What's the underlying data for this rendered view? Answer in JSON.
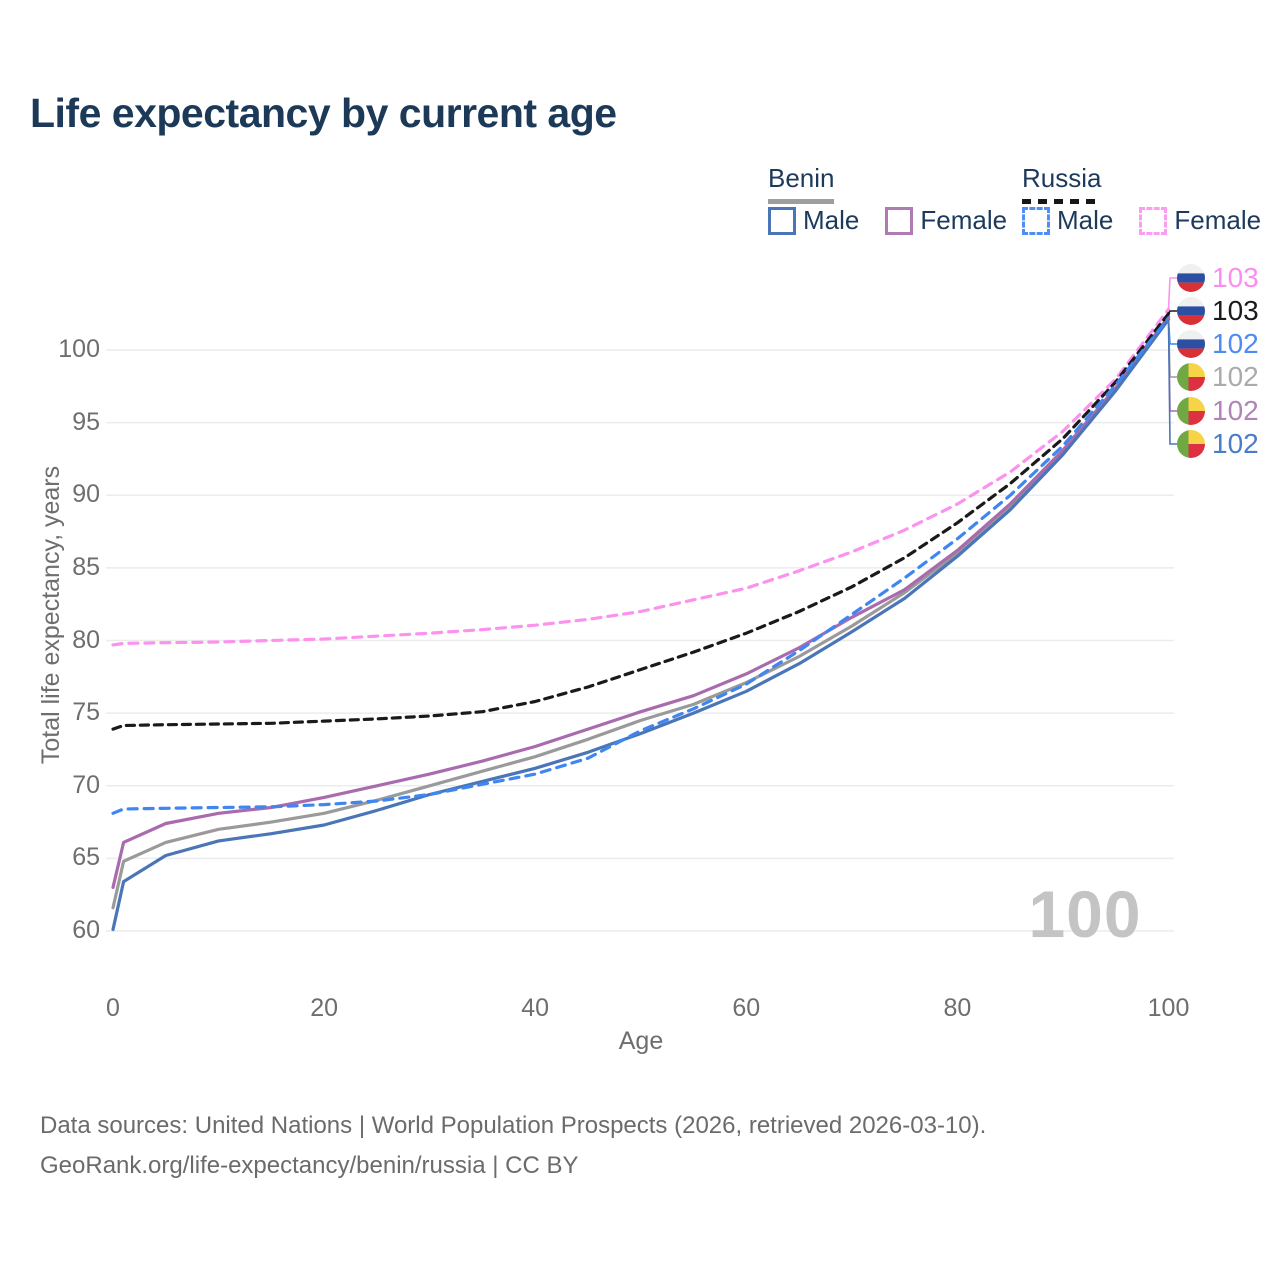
{
  "title": "Life expectancy by current age",
  "legend": {
    "benin": {
      "label": "Benin",
      "male": "Male",
      "female": "Female"
    },
    "russia": {
      "label": "Russia",
      "male": "Male",
      "female": "Female"
    }
  },
  "chart_data": {
    "type": "line",
    "xlabel": "Age",
    "ylabel": "Total life expectancy, years",
    "x_ticks": [
      0,
      20,
      40,
      60,
      80,
      100
    ],
    "y_ticks": [
      60,
      65,
      70,
      75,
      80,
      85,
      90,
      95,
      100
    ],
    "xlim": [
      0,
      100
    ],
    "ylim": [
      60,
      103.5
    ],
    "grid": true,
    "watermark": "100",
    "x": [
      0,
      1,
      5,
      10,
      15,
      20,
      25,
      30,
      35,
      40,
      45,
      50,
      55,
      60,
      65,
      70,
      75,
      80,
      85,
      90,
      95,
      100
    ],
    "series": [
      {
        "name": "Benin Total",
        "country": "Benin",
        "sex": "Total",
        "color": "#9a9a9a",
        "dash": "none",
        "values": [
          61.6,
          64.8,
          66.1,
          67.0,
          67.5,
          68.1,
          69.0,
          70.0,
          71.0,
          72.0,
          73.2,
          74.5,
          75.6,
          77.1,
          78.9,
          81.0,
          83.3,
          86.0,
          89.2,
          92.9,
          97.3,
          102.15
        ]
      },
      {
        "name": "Benin Female",
        "country": "Benin",
        "sex": "Female",
        "color": "#a96bae",
        "dash": "none",
        "values": [
          63.0,
          66.1,
          67.4,
          68.1,
          68.5,
          69.2,
          70.0,
          70.8,
          71.7,
          72.7,
          73.9,
          75.1,
          76.2,
          77.7,
          79.5,
          81.6,
          83.5,
          86.2,
          89.4,
          93.1,
          97.4,
          102.3
        ]
      },
      {
        "name": "Benin Male",
        "country": "Benin",
        "sex": "Male",
        "color": "#4a76b8",
        "dash": "none",
        "values": [
          60.1,
          63.4,
          65.2,
          66.2,
          66.7,
          67.3,
          68.3,
          69.4,
          70.3,
          71.2,
          72.3,
          73.6,
          75.0,
          76.5,
          78.4,
          80.6,
          82.9,
          85.8,
          89.0,
          92.8,
          97.2,
          102.1
        ]
      },
      {
        "name": "Russia Female",
        "country": "Russia",
        "sex": "Female",
        "color": "#fb93ee",
        "dash": "9 7",
        "values": [
          79.7,
          79.8,
          79.85,
          79.9,
          80.0,
          80.1,
          80.3,
          80.5,
          80.75,
          81.05,
          81.45,
          82.0,
          82.8,
          83.6,
          84.8,
          86.1,
          87.6,
          89.4,
          91.6,
          94.4,
          98.0,
          102.8
        ]
      },
      {
        "name": "Russia Total",
        "country": "Russia",
        "sex": "Total",
        "color": "#1a1a1a",
        "dash": "8 6",
        "values": [
          73.9,
          74.15,
          74.2,
          74.25,
          74.3,
          74.45,
          74.6,
          74.8,
          75.1,
          75.8,
          76.8,
          78.0,
          79.2,
          80.5,
          82.0,
          83.7,
          85.7,
          88.1,
          90.8,
          93.9,
          97.8,
          102.5
        ]
      },
      {
        "name": "Russia Male",
        "country": "Russia",
        "sex": "Male",
        "color": "#3f86f0",
        "dash": "9 7",
        "values": [
          68.1,
          68.4,
          68.45,
          68.5,
          68.55,
          68.7,
          68.95,
          69.4,
          70.1,
          70.8,
          71.9,
          73.8,
          75.3,
          77.0,
          79.3,
          81.8,
          84.3,
          87.0,
          90.0,
          93.4,
          97.6,
          102.2
        ]
      }
    ]
  },
  "end_labels": [
    {
      "value": "103",
      "color": "#fb8df0",
      "flag": "russia",
      "series": 3
    },
    {
      "value": "103",
      "color": "#1a1a1a",
      "flag": "russia",
      "series": 4
    },
    {
      "value": "102",
      "color": "#4d8bf5",
      "flag": "russia",
      "series": 5
    },
    {
      "value": "102",
      "color": "#ababab",
      "flag": "benin",
      "series": 0
    },
    {
      "value": "102",
      "color": "#b283b8",
      "flag": "benin",
      "series": 1
    },
    {
      "value": "102",
      "color": "#4a7cc9",
      "flag": "benin",
      "series": 2
    }
  ],
  "flag_colors": {
    "russia": {
      "top": "#f0f0f0",
      "mid": "#2b4fa2",
      "bottom": "#d93036"
    },
    "benin": {
      "left": "#70a843",
      "top_right": "#f7d447",
      "bottom_right": "#dd3040"
    }
  },
  "footer": {
    "line1": "Data sources: United Nations | World Population Prospects (2026, retrieved 2026-03-10).",
    "line2": "GeoRank.org/life-expectancy/benin/russia | CC BY"
  }
}
